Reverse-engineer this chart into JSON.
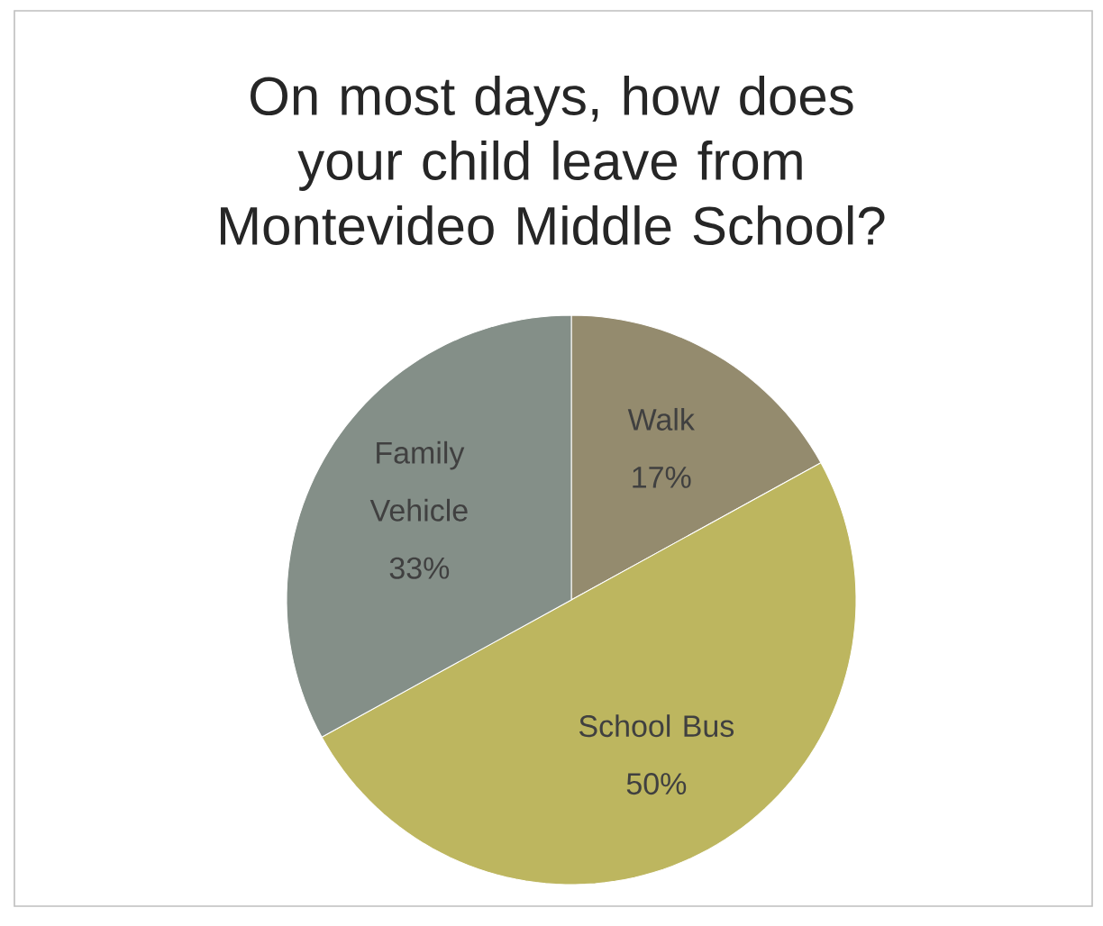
{
  "chart_data": {
    "type": "pie",
    "title": "On most days, how does your child leave from Montevideo Middle School?",
    "categories": [
      "Walk",
      "School Bus",
      "Family Vehicle"
    ],
    "values": [
      17,
      50,
      33
    ],
    "value_labels": [
      "17%",
      "50%",
      "33%"
    ],
    "colors": [
      "#948b6e",
      "#bdb65f",
      "#848f88"
    ]
  }
}
